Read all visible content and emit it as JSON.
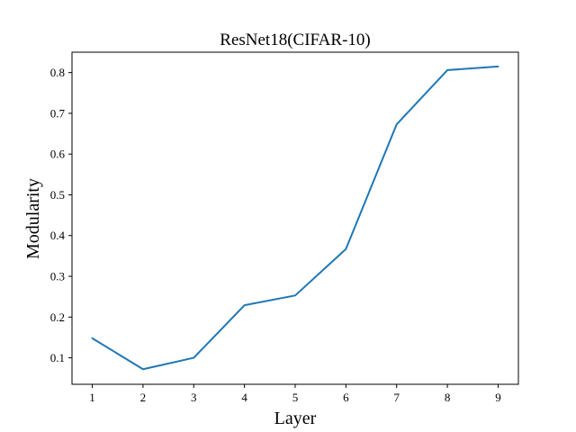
{
  "chart_data": {
    "type": "line",
    "title": "ResNet18(CIFAR-10)",
    "xlabel": "Layer",
    "ylabel": "Modularity",
    "x": [
      1,
      2,
      3,
      4,
      5,
      6,
      7,
      8,
      9
    ],
    "xticks": [
      "1",
      "2",
      "3",
      "4",
      "5",
      "6",
      "7",
      "8",
      "9"
    ],
    "yticks": [
      "0.1",
      "0.2",
      "0.3",
      "0.4",
      "0.5",
      "0.6",
      "0.7",
      "0.8"
    ],
    "xlim": [
      0.6,
      9.4
    ],
    "ylim": [
      0.035,
      0.85
    ],
    "grid": false,
    "series": [
      {
        "color": "#1f77b4",
        "values": [
          0.148,
          0.072,
          0.1,
          0.229,
          0.253,
          0.367,
          0.673,
          0.806,
          0.815
        ]
      }
    ]
  }
}
